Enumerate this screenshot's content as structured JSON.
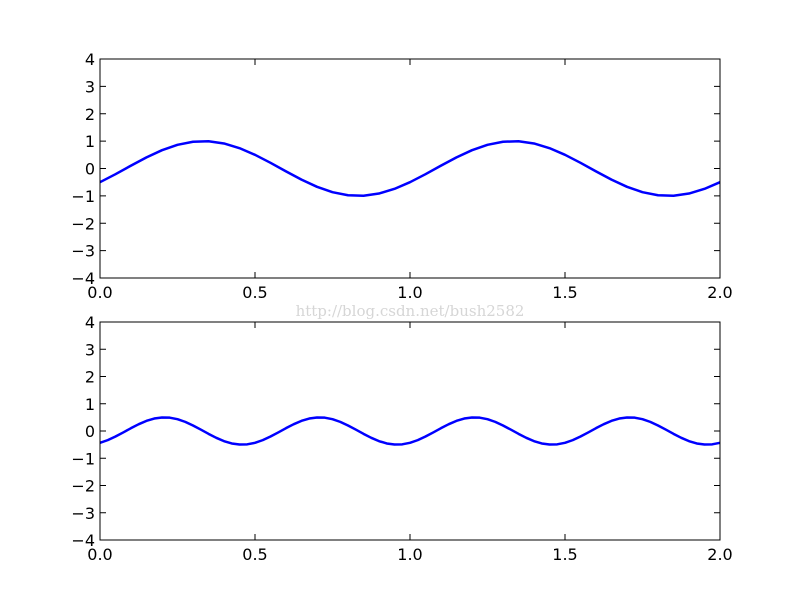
{
  "chart_data": [
    {
      "type": "line",
      "x": [
        0,
        0.05,
        0.1,
        0.15,
        0.2,
        0.25,
        0.3,
        0.35,
        0.4,
        0.45,
        0.5,
        0.55,
        0.6,
        0.65,
        0.7,
        0.75,
        0.8,
        0.85,
        0.9,
        0.95,
        1,
        1.05,
        1.1,
        1.15,
        1.2,
        1.25,
        1.3,
        1.35,
        1.4,
        1.45,
        1.5,
        1.55,
        1.6,
        1.65,
        1.7,
        1.75,
        1.8,
        1.85,
        1.9,
        1.95,
        2
      ],
      "series": [
        {
          "color": "#0000ff",
          "values": [
            -0.5,
            -0.208,
            0.105,
            0.407,
            0.669,
            0.866,
            0.978,
            0.995,
            0.914,
            0.743,
            0.5,
            0.208,
            -0.105,
            -0.407,
            -0.669,
            -0.866,
            -0.978,
            -0.995,
            -0.914,
            -0.743,
            -0.5,
            -0.208,
            0.105,
            0.407,
            0.669,
            0.866,
            0.978,
            0.995,
            0.914,
            0.743,
            0.5,
            0.208,
            -0.105,
            -0.407,
            -0.669,
            -0.866,
            -0.978,
            -0.995,
            -0.914,
            -0.743,
            -0.5
          ]
        }
      ],
      "xlim": [
        0,
        2
      ],
      "xticks": [
        {
          "value": 0,
          "label": "0.0"
        },
        0.5,
        {
          "value": 1,
          "label": "1.0"
        },
        1.5,
        {
          "value": 2,
          "label": "2.0"
        }
      ],
      "ylim": [
        -4,
        4
      ],
      "yticks": [
        {
          "value": -4,
          "label": "−4"
        },
        {
          "value": -3,
          "label": "−3"
        },
        {
          "value": -2,
          "label": "−2"
        },
        {
          "value": -1,
          "label": "−1"
        },
        0,
        1,
        2,
        3,
        4
      ]
    },
    {
      "type": "line",
      "x": [
        0,
        0.025,
        0.05,
        0.075,
        0.1,
        0.125,
        0.15,
        0.175,
        0.2,
        0.225,
        0.25,
        0.275,
        0.3,
        0.325,
        0.35,
        0.375,
        0.4,
        0.425,
        0.45,
        0.475,
        0.5,
        0.525,
        0.55,
        0.575,
        0.6,
        0.625,
        0.65,
        0.675,
        0.7,
        0.725,
        0.75,
        0.775,
        0.8,
        0.825,
        0.85,
        0.875,
        0.9,
        0.925,
        0.95,
        0.975,
        1,
        1.025,
        1.05,
        1.075,
        1.1,
        1.125,
        1.15,
        1.175,
        1.2,
        1.225,
        1.25,
        1.275,
        1.3,
        1.325,
        1.35,
        1.375,
        1.4,
        1.425,
        1.45,
        1.475,
        1.5,
        1.525,
        1.55,
        1.575,
        1.6,
        1.625,
        1.65,
        1.675,
        1.7,
        1.725,
        1.75,
        1.775,
        1.8,
        1.825,
        1.85,
        1.875,
        1.9,
        1.925,
        1.95,
        1.975,
        2
      ],
      "series": [
        {
          "color": "#0000ff",
          "values": [
            -0.433,
            -0.335,
            -0.203,
            -0.052,
            0.104,
            0.25,
            0.372,
            0.457,
            0.497,
            0.489,
            0.433,
            0.335,
            0.203,
            0.052,
            -0.104,
            -0.25,
            -0.372,
            -0.457,
            -0.497,
            -0.489,
            -0.433,
            -0.335,
            -0.203,
            -0.052,
            0.104,
            0.25,
            0.372,
            0.457,
            0.497,
            0.489,
            0.433,
            0.335,
            0.203,
            0.052,
            -0.104,
            -0.25,
            -0.372,
            -0.457,
            -0.497,
            -0.489,
            -0.433,
            -0.335,
            -0.203,
            -0.052,
            0.104,
            0.25,
            0.372,
            0.457,
            0.497,
            0.489,
            0.433,
            0.335,
            0.203,
            0.052,
            -0.104,
            -0.25,
            -0.372,
            -0.457,
            -0.497,
            -0.489,
            -0.433,
            -0.335,
            -0.203,
            -0.052,
            0.104,
            0.25,
            0.372,
            0.457,
            0.497,
            0.489,
            0.433,
            0.335,
            0.203,
            0.052,
            -0.104,
            -0.25,
            -0.372,
            -0.457,
            -0.497,
            -0.489,
            -0.433
          ]
        }
      ],
      "xlim": [
        0,
        2
      ],
      "xticks": [
        {
          "value": 0,
          "label": "0.0"
        },
        0.5,
        {
          "value": 1,
          "label": "1.0"
        },
        1.5,
        {
          "value": 2,
          "label": "2.0"
        }
      ],
      "ylim": [
        -4,
        4
      ],
      "yticks": [
        {
          "value": -4,
          "label": "−4"
        },
        {
          "value": -3,
          "label": "−3"
        },
        {
          "value": -2,
          "label": "−2"
        },
        {
          "value": -1,
          "label": "−1"
        },
        0,
        1,
        2,
        3,
        4
      ]
    }
  ],
  "watermark": "http://blog.csdn.net/bush2582"
}
